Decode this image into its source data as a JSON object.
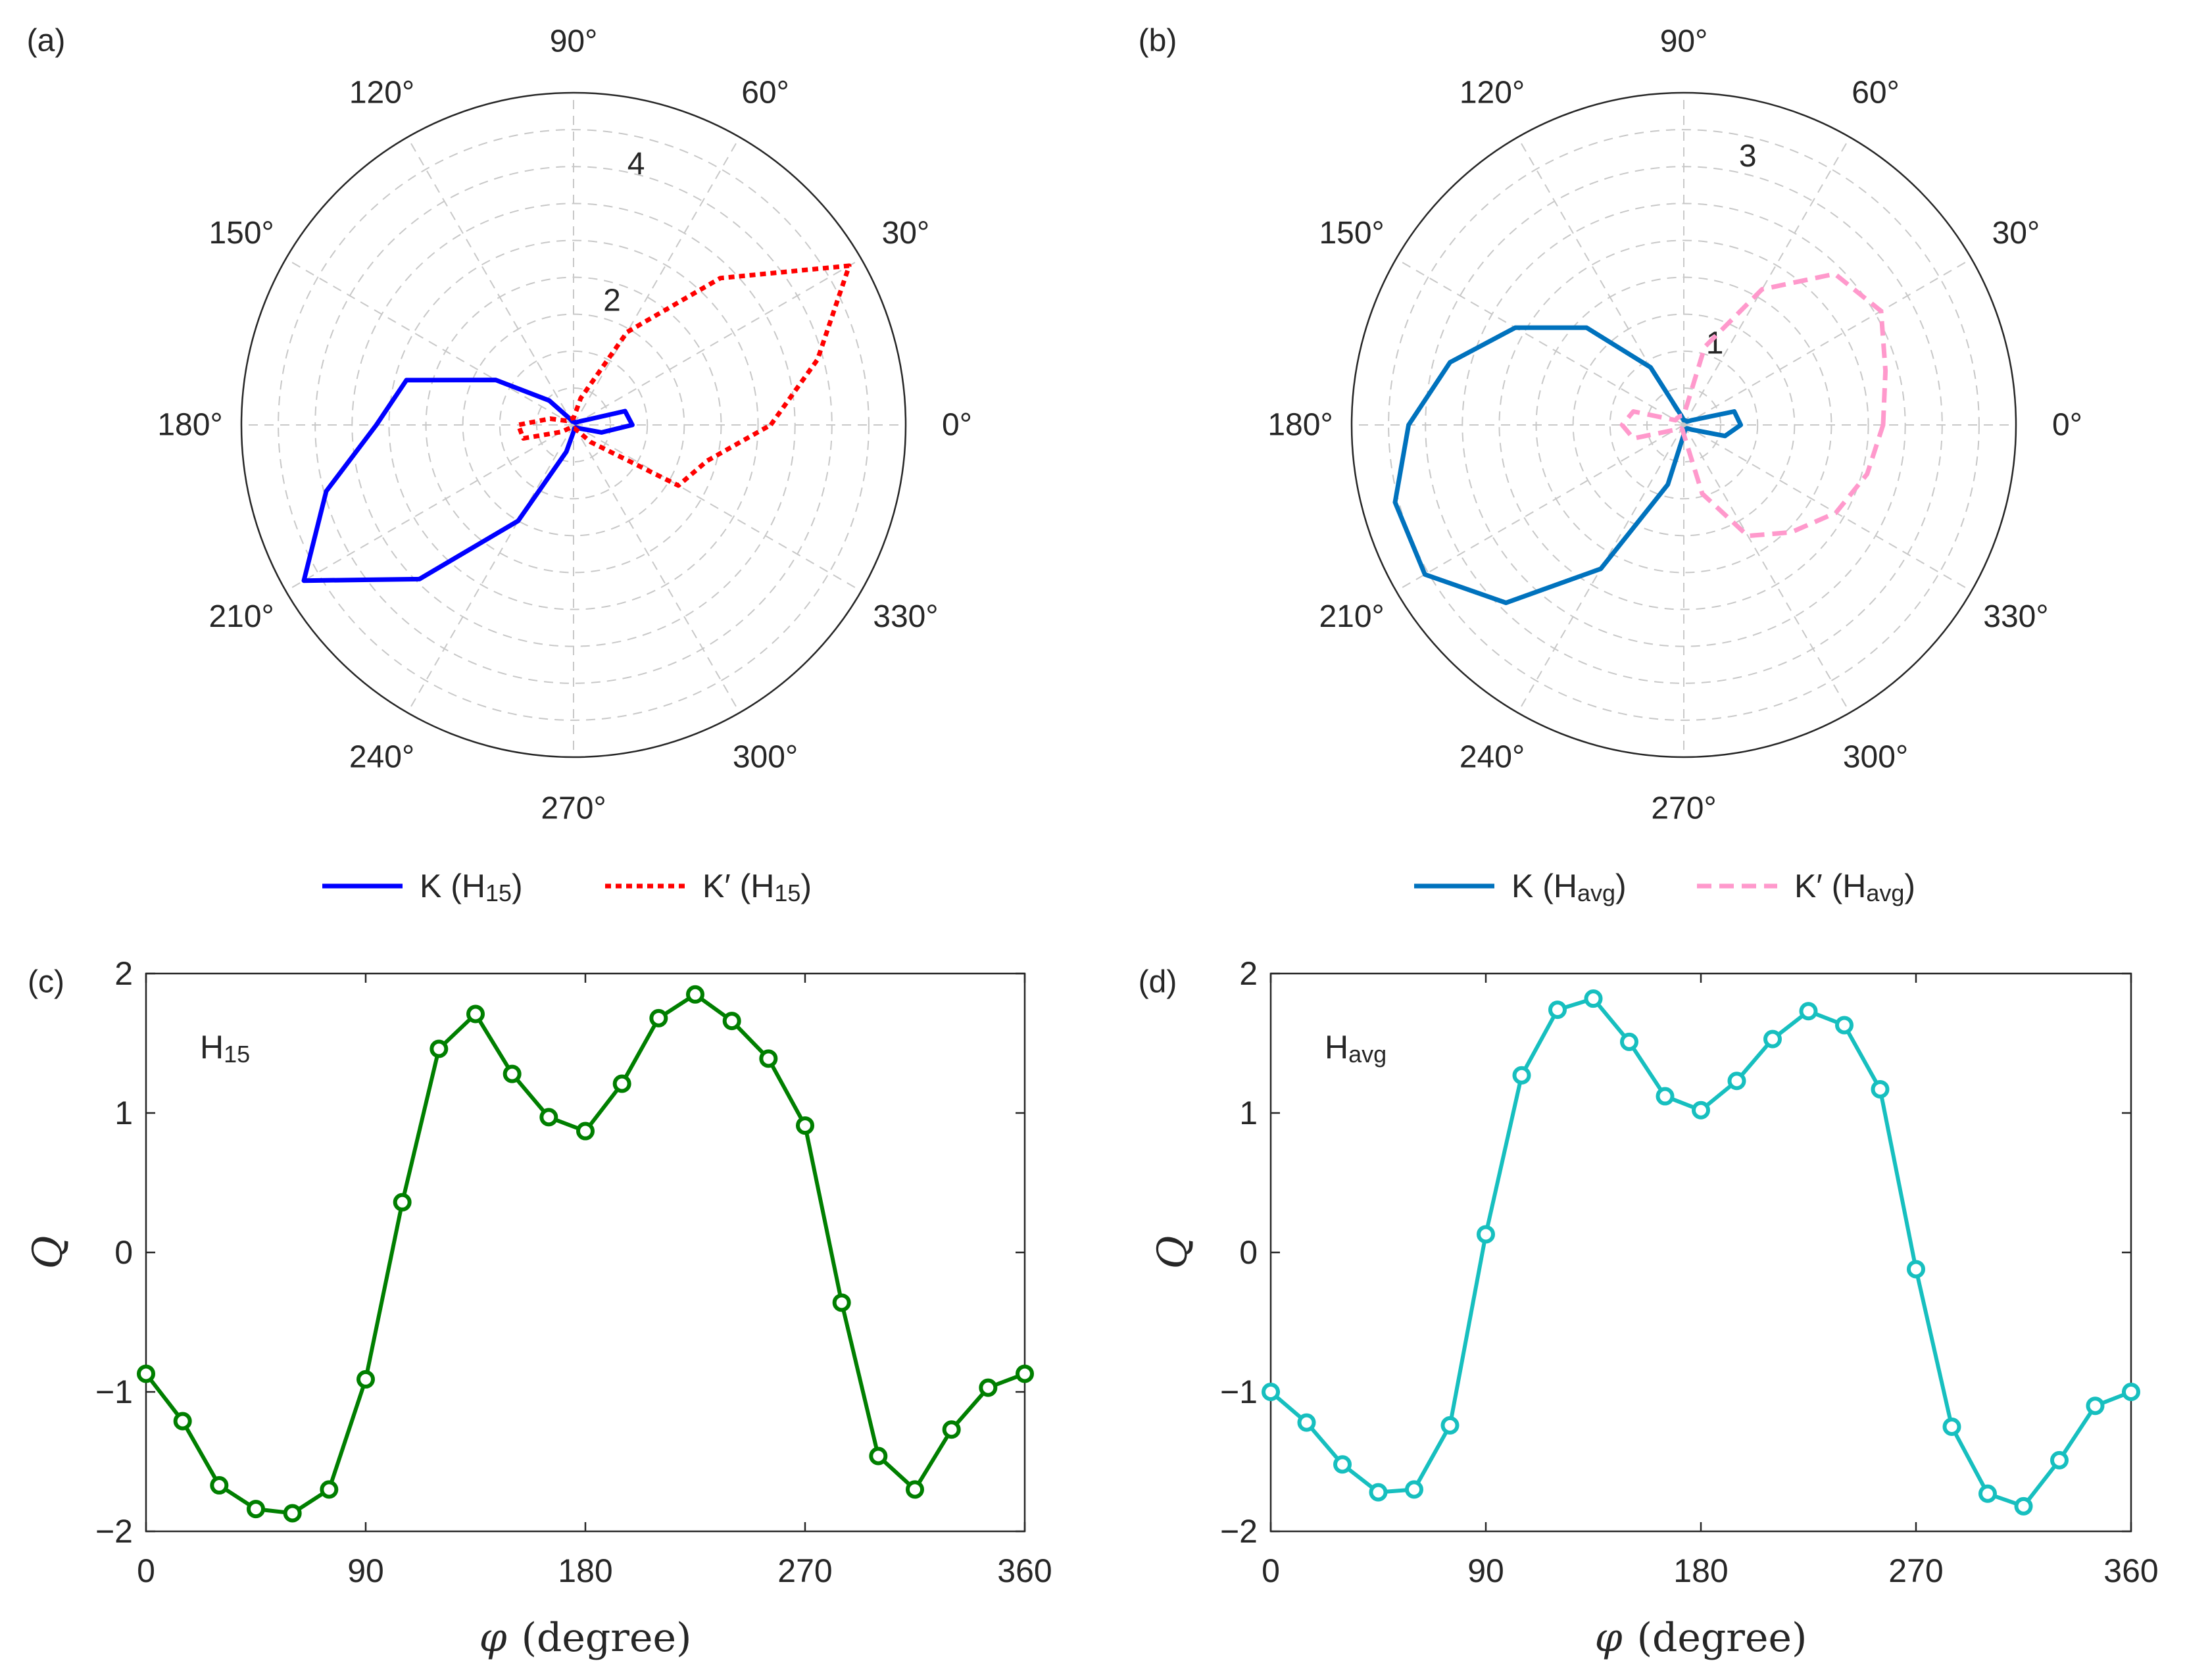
{
  "chart_data": [
    {
      "panel_label": "(a)",
      "type": "polar",
      "r_ticks": [
        "2",
        "4"
      ],
      "r_max": 4.8,
      "angle_ticks": [
        "0°",
        "30°",
        "60°",
        "90°",
        "120°",
        "150°",
        "180°",
        "210°",
        "240°",
        "270°",
        "300°",
        "330°"
      ],
      "series": [
        {
          "name": "K (H15)",
          "label_main": "K (H",
          "label_sub": "15",
          "label_tail": ")",
          "color": "#0000ff",
          "style": "solid",
          "theta": [
            0,
            15,
            30,
            45,
            60,
            75,
            90,
            105,
            120,
            135,
            150,
            165,
            180,
            195,
            210,
            225,
            240,
            255,
            270,
            285,
            300,
            315,
            330,
            345
          ],
          "r": [
            0.85,
            0.77,
            0.1,
            0.05,
            0.04,
            0.05,
            0.05,
            0.05,
            0.1,
            0.5,
            1.3,
            2.5,
            2.85,
            3.7,
            4.5,
            3.15,
            1.6,
            0.4,
            0.1,
            0.05,
            0.05,
            0.05,
            0.1,
            0.42
          ]
        },
        {
          "name": "K' (H15)",
          "label_main": "K′ (H",
          "label_sub": "15",
          "label_tail": ")",
          "color": "#ff0000",
          "style": "dotted",
          "theta": [
            0,
            15,
            30,
            45,
            60,
            75,
            90,
            105,
            120,
            135,
            150,
            165,
            180,
            195,
            210,
            225,
            240,
            255,
            270,
            285,
            300,
            315,
            330,
            345
          ],
          "r": [
            2.85,
            3.65,
            4.6,
            3.0,
            1.55,
            0.4,
            0.1,
            0.1,
            0.1,
            0.1,
            0.12,
            0.35,
            0.8,
            0.75,
            0.2,
            0.05,
            0.05,
            0.05,
            0.05,
            0.05,
            0.08,
            0.35,
            1.75,
            2.0
          ]
        }
      ]
    },
    {
      "panel_label": "(b)",
      "type": "polar",
      "r_ticks": [
        "1",
        "3"
      ],
      "r_max": 3.5,
      "angle_ticks": [
        "0°",
        "30°",
        "60°",
        "90°",
        "120°",
        "150°",
        "180°",
        "210°",
        "240°",
        "270°",
        "300°",
        "330°"
      ],
      "series": [
        {
          "name": "K (Havg)",
          "label_main": "K (H",
          "label_sub": "avg",
          "label_tail": ")",
          "color": "#0072bd",
          "style": "solid",
          "theta": [
            0,
            15,
            30,
            45,
            60,
            75,
            90,
            105,
            120,
            135,
            150,
            165,
            180,
            195,
            210,
            225,
            240,
            255,
            270,
            285,
            300,
            315,
            330,
            345
          ],
          "r": [
            0.6,
            0.55,
            0.1,
            0.05,
            0.05,
            0.05,
            0.05,
            0.1,
            0.7,
            1.45,
            2.05,
            2.55,
            2.9,
            3.15,
            3.15,
            2.65,
            1.75,
            0.65,
            0.1,
            0.05,
            0.05,
            0.05,
            0.1,
            0.45
          ]
        },
        {
          "name": "K' (Havg)",
          "label_main": "K′ (H",
          "label_sub": "avg",
          "label_tail": ")",
          "color": "#ff99cc",
          "style": "dashed",
          "theta": [
            0,
            15,
            30,
            45,
            60,
            75,
            90,
            105,
            120,
            135,
            150,
            165,
            180,
            195,
            210,
            225,
            240,
            255,
            270,
            285,
            300,
            315,
            330,
            345
          ],
          "r": [
            2.1,
            2.2,
            2.4,
            2.25,
            1.65,
            0.85,
            0.1,
            0.1,
            0.1,
            0.1,
            0.1,
            0.55,
            0.65,
            0.55,
            0.1,
            0.05,
            0.05,
            0.05,
            0.1,
            0.75,
            1.35,
            1.6,
            1.85,
            2.0
          ]
        }
      ]
    },
    {
      "panel_label": "(c)",
      "type": "line",
      "annotation_main": "H",
      "annotation_sub": "15",
      "color": "#007f00",
      "x": [
        0,
        15,
        30,
        45,
        60,
        75,
        90,
        105,
        120,
        135,
        150,
        165,
        180,
        195,
        210,
        225,
        240,
        255,
        270,
        285,
        300,
        315,
        330,
        345,
        360
      ],
      "y": [
        -0.87,
        -1.21,
        -1.67,
        -1.84,
        -1.87,
        -1.7,
        -0.91,
        0.36,
        1.46,
        1.71,
        1.28,
        0.97,
        0.87,
        1.21,
        1.68,
        1.85,
        1.66,
        1.39,
        0.91,
        -0.36,
        -1.46,
        -1.7,
        -1.27,
        -0.97,
        -0.87
      ],
      "xlim": [
        0,
        360
      ],
      "ylim": [
        -2,
        2
      ],
      "xticks": [
        "0",
        "90",
        "180",
        "270",
        "360"
      ],
      "yticks": [
        "2",
        "1",
        "0",
        "−1",
        "−2"
      ],
      "xlabel_symbol": "φ",
      "xlabel_text": "(degree)",
      "ylabel": "Q"
    },
    {
      "panel_label": "(d)",
      "type": "line",
      "annotation_main": "H",
      "annotation_sub": "avg",
      "color": "#17bfbf",
      "x": [
        0,
        15,
        30,
        45,
        60,
        75,
        90,
        105,
        120,
        135,
        150,
        165,
        180,
        195,
        210,
        225,
        240,
        255,
        270,
        285,
        300,
        315,
        330,
        345,
        360
      ],
      "y": [
        -1.0,
        -1.22,
        -1.52,
        -1.72,
        -1.7,
        -1.24,
        0.13,
        1.27,
        1.74,
        1.82,
        1.51,
        1.12,
        1.02,
        1.23,
        1.53,
        1.73,
        1.63,
        1.17,
        -0.12,
        -1.25,
        -1.73,
        -1.82,
        -1.49,
        -1.1,
        -1.0
      ],
      "xlim": [
        0,
        360
      ],
      "ylim": [
        -2,
        2
      ],
      "xticks": [
        "0",
        "90",
        "180",
        "270",
        "360"
      ],
      "yticks": [
        "2",
        "1",
        "0",
        "−1",
        "−2"
      ],
      "xlabel_symbol": "φ",
      "xlabel_text": "(degree)",
      "ylabel": "Q"
    }
  ]
}
